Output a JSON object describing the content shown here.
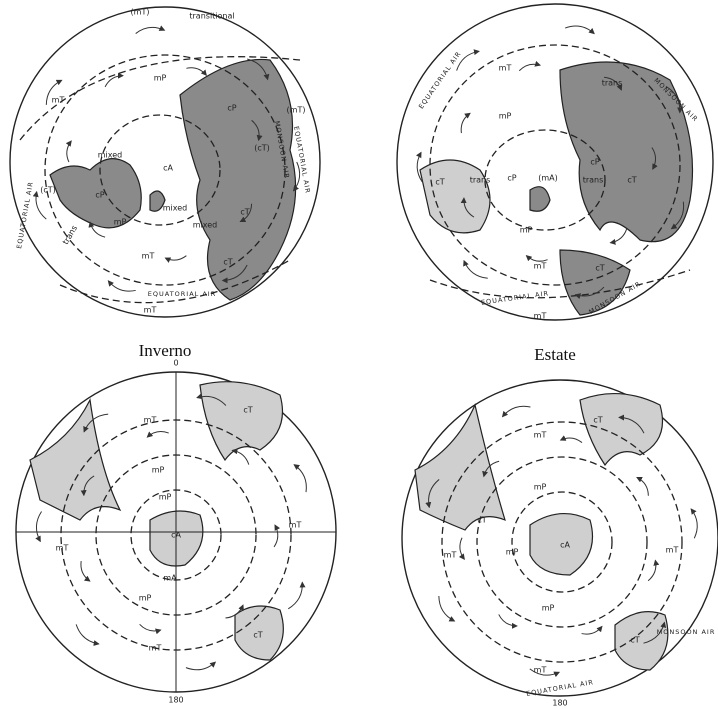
{
  "captions": {
    "winter": "Inverno",
    "summer": "Estate"
  },
  "maps": [
    {
      "labels": [
        "(mT)",
        "transitional",
        "mT",
        "mP",
        "cP",
        "(cT)",
        "(mT)",
        "MONSOON AIR",
        "EQUATORIAL AIR",
        "mixed",
        "cP",
        "cA",
        "(cT)",
        "EQUATORIAL AIR",
        "trans",
        "mP",
        "mixed",
        "mixed",
        "cT",
        "mT",
        "cT",
        "EQUATORIAL AIR",
        "mT"
      ]
    },
    {
      "labels": [
        "EQUATORIAL AIR",
        "mT",
        "mP",
        "trans",
        "MONSOON AIR",
        "cP",
        "cT",
        "(mA)",
        "trans",
        "cT",
        "cP",
        "trans",
        "mP",
        "mT",
        "cT",
        "EQUATORIAL AIR",
        "MONSOON AIR",
        "mT"
      ]
    },
    {
      "labels": [
        "0",
        "mT",
        "cT",
        "mP",
        "mP",
        "cA",
        "mA",
        "mT",
        "mT",
        "mP",
        "cT",
        "mT",
        "180"
      ]
    },
    {
      "labels": [
        "mT",
        "cT",
        "mP",
        "cT",
        "mP",
        "cA",
        "mT",
        "mT",
        "mP",
        "cT",
        "MONSOON AIR",
        "mT",
        "EQUATORIAL AIR",
        "180"
      ]
    }
  ]
}
